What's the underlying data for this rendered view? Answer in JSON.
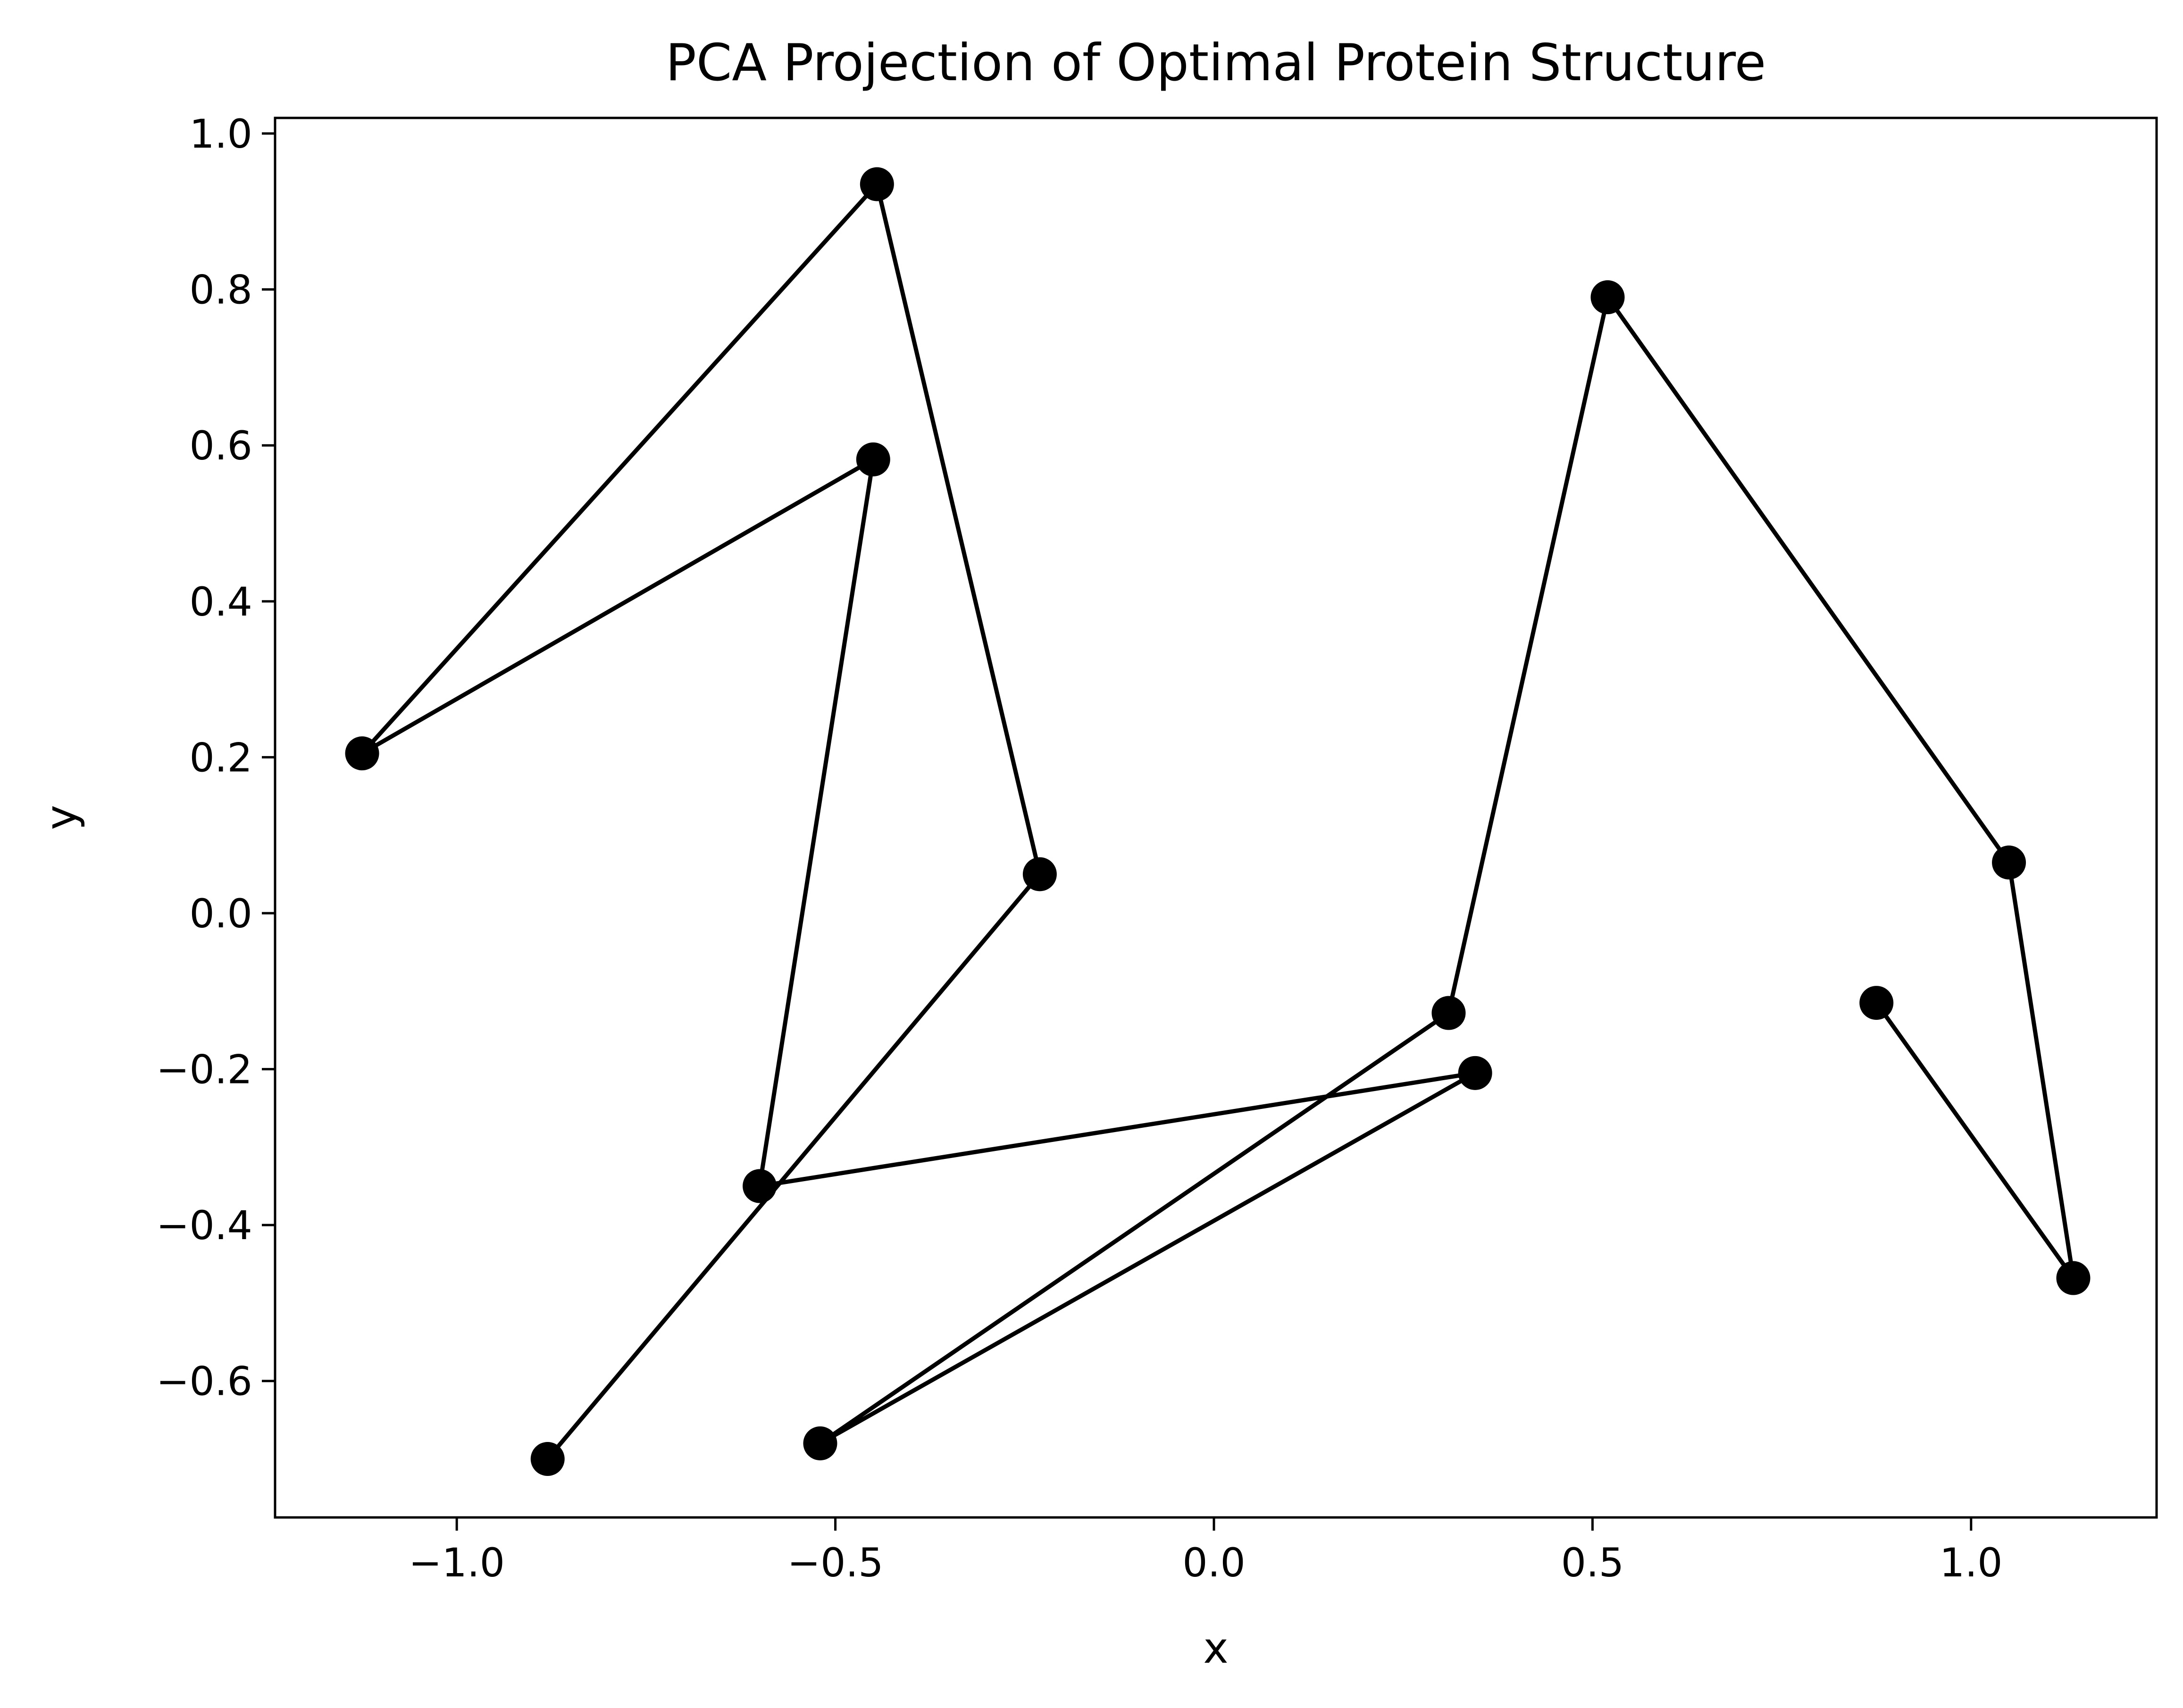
{
  "chart_data": {
    "type": "line",
    "title": "PCA Projection of Optimal Protein Structure",
    "xlabel": "x",
    "ylabel": "y",
    "xlim": [
      -1.24,
      1.245
    ],
    "ylim": [
      -0.775,
      1.02
    ],
    "grid": false,
    "legend": "none",
    "x_ticks": [
      -1.0,
      -0.5,
      0.0,
      0.5,
      1.0
    ],
    "x_tick_labels": [
      "−1.0",
      "−0.5",
      "0.0",
      "0.5",
      "1.0"
    ],
    "y_ticks": [
      -0.6,
      -0.4,
      -0.2,
      0.0,
      0.2,
      0.4,
      0.6,
      0.8,
      1.0
    ],
    "y_tick_labels": [
      "−0.6",
      "−0.4",
      "−0.2",
      "0.0",
      "0.2",
      "0.4",
      "0.6",
      "0.8",
      "1.0"
    ],
    "series": [
      {
        "color": "#000000",
        "marker": "circle",
        "x": [
          -0.88,
          -0.23,
          -0.445,
          -1.125,
          -0.45,
          -0.6,
          0.345,
          -0.52,
          0.31,
          0.52,
          1.05,
          1.135,
          0.875
        ],
        "y": [
          -0.7,
          0.05,
          0.935,
          0.205,
          0.582,
          -0.35,
          -0.205,
          -0.68,
          -0.128,
          0.79,
          0.065,
          -0.468,
          -0.115
        ]
      }
    ]
  }
}
